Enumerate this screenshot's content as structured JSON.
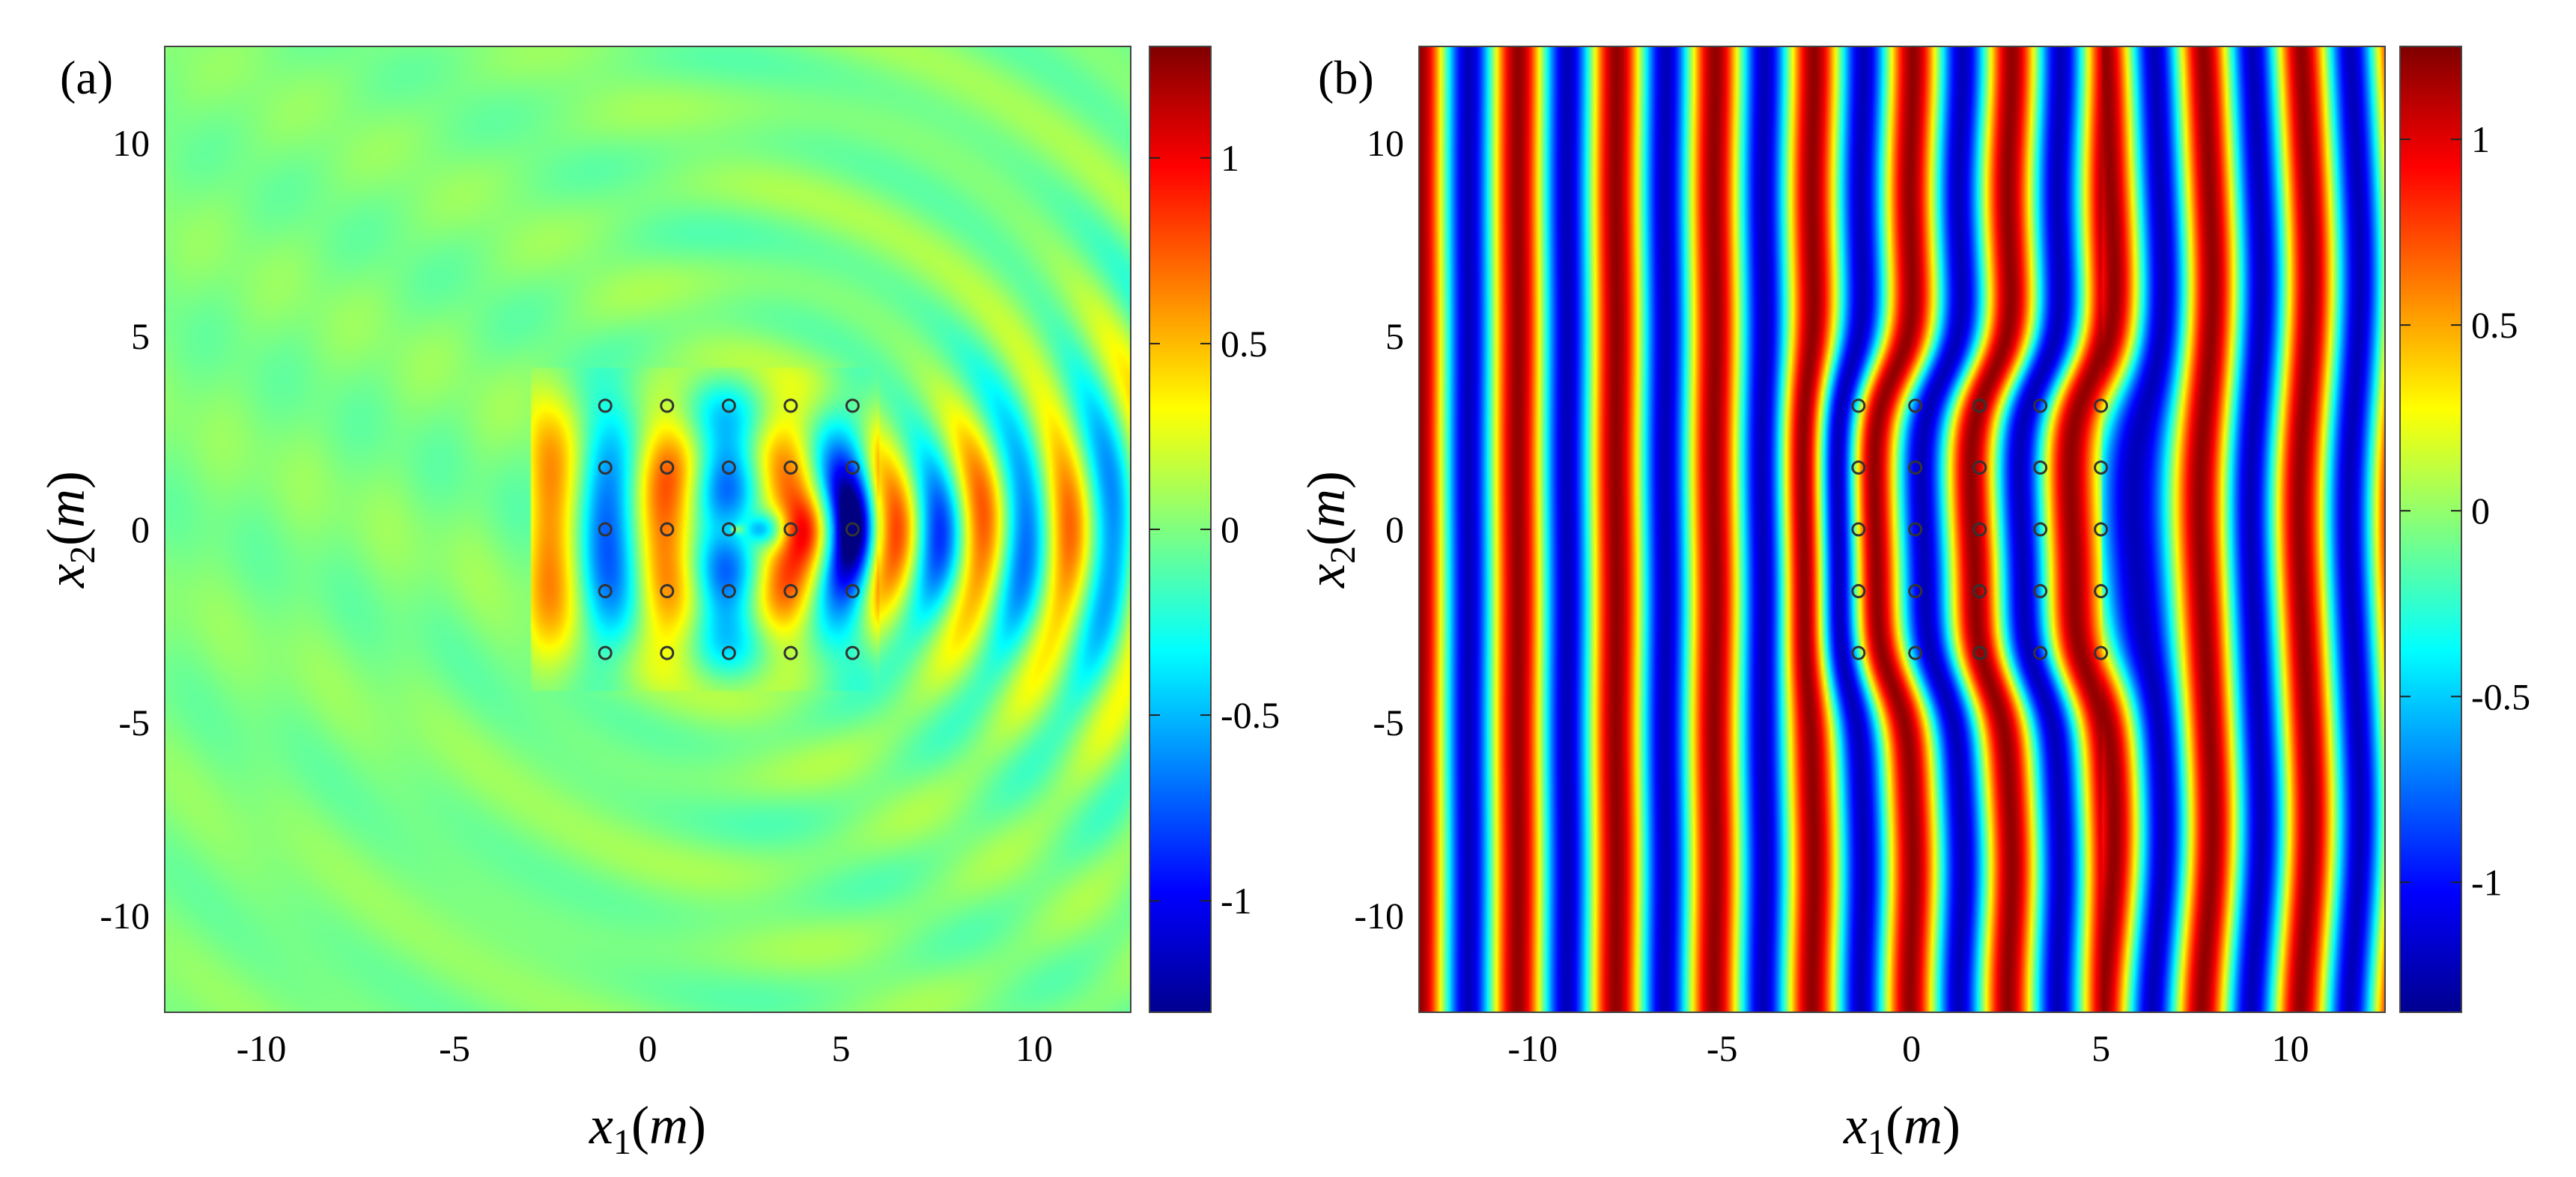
{
  "chart_data": [
    {
      "panel_label": "(a)",
      "type": "heatmap",
      "field": "scattered",
      "x_range": [
        -12.5,
        12.5
      ],
      "y_range": [
        -12.5,
        12.5
      ],
      "xticks": [
        "-10",
        "-5",
        "0",
        "5",
        "10"
      ],
      "xtick_values": [
        -10,
        -5,
        0,
        5,
        10
      ],
      "yticks": [
        "10",
        "5",
        "0",
        "-5",
        "-10"
      ],
      "ytick_values": [
        10,
        5,
        0,
        -5,
        -10
      ],
      "xlabel": {
        "var": "x",
        "sub": "1",
        "unit": "m"
      },
      "ylabel": {
        "var": "x",
        "sub": "2",
        "unit": "m"
      },
      "colorbar": {
        "range": [
          -1.3,
          1.3
        ],
        "ticks": [
          "1",
          "0.5",
          "0",
          "-0.5",
          "-1"
        ],
        "tick_values": [
          1,
          0.5,
          0,
          -0.5,
          -1
        ]
      },
      "scatterers": {
        "x": [
          -1.1,
          0.5,
          2.1,
          3.7,
          5.3
        ],
        "y": [
          3.2,
          1.6,
          0,
          -1.6,
          -3.2
        ]
      }
    },
    {
      "panel_label": "(b)",
      "type": "heatmap",
      "field": "total",
      "x_range": [
        -13,
        12.5
      ],
      "y_range": [
        -12.5,
        12.5
      ],
      "xticks": [
        "-10",
        "-5",
        "0",
        "5",
        "10"
      ],
      "xtick_values": [
        -10,
        -5,
        0,
        5,
        10
      ],
      "yticks": [
        "10",
        "5",
        "0",
        "-5",
        "-10"
      ],
      "ytick_values": [
        10,
        5,
        0,
        -5,
        -10
      ],
      "xlabel": {
        "var": "x",
        "sub": "1",
        "unit": "m"
      },
      "ylabel": {
        "var": "x",
        "sub": "2",
        "unit": "m"
      },
      "colorbar": {
        "range": [
          -1.35,
          1.25
        ],
        "ticks": [
          "1",
          "0.5",
          "0",
          "-0.5",
          "-1"
        ],
        "tick_values": [
          1,
          0.5,
          0,
          -0.5,
          -1
        ]
      },
      "scatterers": {
        "x": [
          -1.4,
          0.1,
          1.8,
          3.4,
          5.0
        ],
        "y": [
          3.2,
          1.6,
          0,
          -1.6,
          -3.2
        ]
      }
    }
  ]
}
